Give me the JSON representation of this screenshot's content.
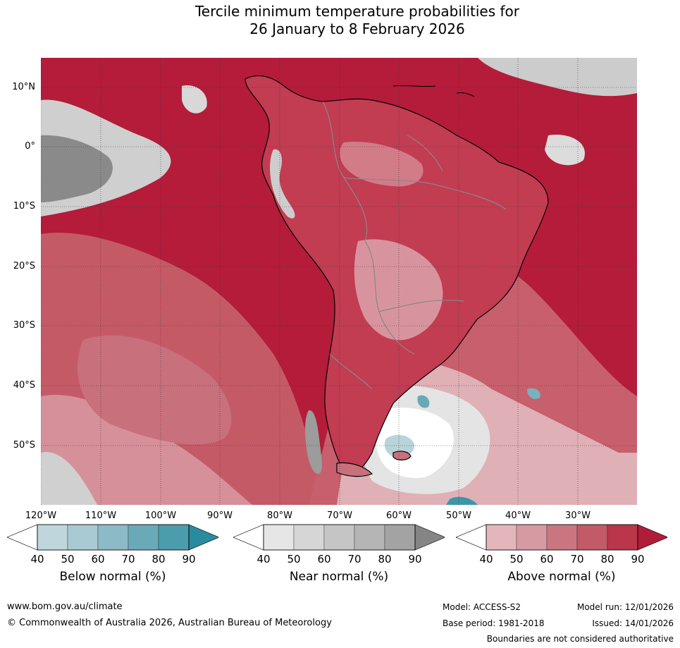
{
  "title": {
    "line1": "Tercile minimum temperature probabilities for",
    "line2": "26 January to 8 February 2026"
  },
  "map": {
    "lat_labels": [
      "10°N",
      "0°",
      "10°S",
      "20°S",
      "30°S",
      "40°S",
      "50°S"
    ],
    "lon_labels": [
      "120°W",
      "110°W",
      "100°W",
      "90°W",
      "80°W",
      "70°W",
      "60°W",
      "50°W",
      "40°W",
      "30°W"
    ],
    "ocean_color": "#b41c3a",
    "land_outline_color": "#000000",
    "border_color": "#888888"
  },
  "legends": [
    {
      "title": "Below normal (%)",
      "ticks": [
        "40",
        "50",
        "60",
        "70",
        "80",
        "90"
      ],
      "colors": [
        "#ffffff",
        "#bed6dc",
        "#a9cad2",
        "#8cbac6",
        "#6aaab8",
        "#4b9cad",
        "#2a8a9e"
      ]
    },
    {
      "title": "Near normal (%)",
      "ticks": [
        "40",
        "50",
        "60",
        "70",
        "80",
        "90"
      ],
      "colors": [
        "#ffffff",
        "#e6e6e6",
        "#d6d6d6",
        "#c5c5c5",
        "#b5b5b5",
        "#a3a3a3",
        "#858585"
      ]
    },
    {
      "title": "Above normal (%)",
      "ticks": [
        "40",
        "50",
        "60",
        "70",
        "80",
        "90"
      ],
      "colors": [
        "#ffffff",
        "#e3b6bc",
        "#d69aa2",
        "#ca7680",
        "#c25a67",
        "#ba364b",
        "#b01d38"
      ]
    }
  ],
  "footer": {
    "website": "www.bom.gov.au/climate",
    "copyright": "© Commonwealth of Australia 2026, Australian Bureau of Meteorology",
    "model": "Model: ACCESS-S2",
    "base_period": "Base period: 1981-2018",
    "model_run": "Model run: 12/01/2026",
    "issued": "Issued: 14/01/2026",
    "disclaimer": "Boundaries are not considered authoritative"
  }
}
